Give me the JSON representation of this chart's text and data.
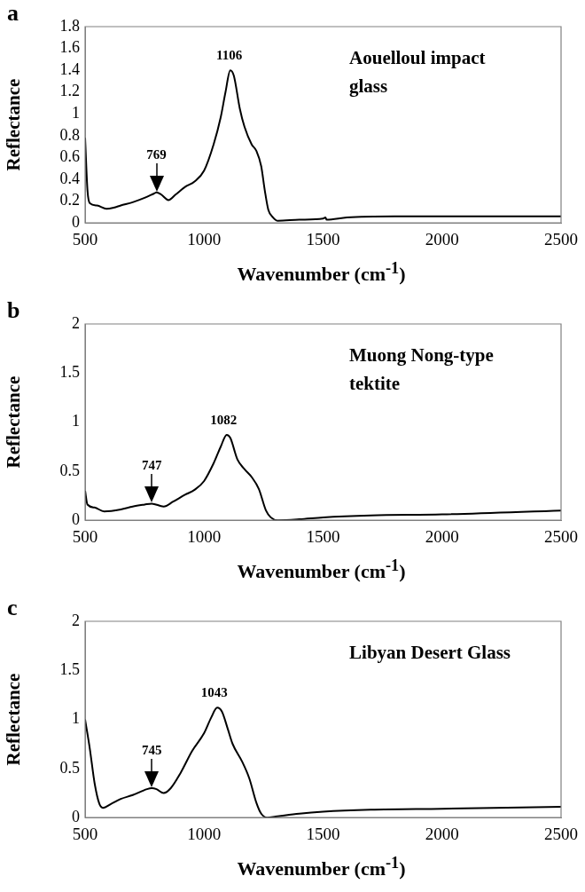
{
  "chart_data": [
    {
      "type": "line",
      "title": "a",
      "xlabel": "Wavenumber (cm$^{-1}$)",
      "ylabel": "Reflectance",
      "xlim": [
        500,
        2500
      ],
      "xticks": [
        500,
        1000,
        1500,
        2000,
        2500
      ],
      "ylim": [
        0,
        1.8
      ],
      "yticks": [
        0,
        0.2,
        0.4,
        0.6,
        0.8,
        1,
        1.2,
        1.4,
        1.6,
        1.8
      ],
      "grid": false,
      "legend": false,
      "annotations": [
        "Aouelloul impact glass",
        {
          "text": "1106",
          "x": 1106,
          "y": 1.4
        },
        {
          "text": "769",
          "x": 800,
          "y": 0.28
        }
      ],
      "series": [
        {
          "color": "#000000",
          "x": [
            500,
            510,
            520,
            550,
            590,
            620,
            650,
            700,
            750,
            790,
            800,
            820,
            850,
            880,
            920,
            960,
            1000,
            1040,
            1070,
            1090,
            1110,
            1125,
            1150,
            1170,
            1200,
            1220,
            1240,
            1255,
            1270,
            1290,
            1310,
            1400,
            1500,
            1510,
            1515,
            1600,
            1800,
            2000,
            2500
          ],
          "values": [
            0.78,
            0.3,
            0.18,
            0.16,
            0.13,
            0.14,
            0.16,
            0.19,
            0.23,
            0.27,
            0.28,
            0.26,
            0.21,
            0.26,
            0.33,
            0.38,
            0.48,
            0.72,
            0.97,
            1.2,
            1.4,
            1.35,
            1.05,
            0.88,
            0.72,
            0.66,
            0.52,
            0.3,
            0.12,
            0.05,
            0.02,
            0.03,
            0.04,
            0.05,
            0.03,
            0.05,
            0.06,
            0.06,
            0.06
          ]
        }
      ]
    },
    {
      "type": "line",
      "title": "b",
      "xlabel": "Wavenumber (cm$^{-1}$)",
      "ylabel": "Reflectance",
      "xlim": [
        500,
        2500
      ],
      "xticks": [
        500,
        1000,
        1500,
        2000,
        2500
      ],
      "ylim": [
        0,
        2
      ],
      "yticks": [
        0,
        0.5,
        1,
        1.5,
        2
      ],
      "grid": false,
      "legend": false,
      "annotations": [
        "Muong Nong-type tektite",
        {
          "text": "1082",
          "x": 1082,
          "y": 0.87
        },
        {
          "text": "747",
          "x": 780,
          "y": 0.17
        }
      ],
      "series": [
        {
          "color": "#000000",
          "x": [
            500,
            510,
            540,
            580,
            650,
            700,
            750,
            780,
            830,
            870,
            920,
            960,
            1000,
            1040,
            1070,
            1095,
            1110,
            1140,
            1170,
            1200,
            1230,
            1260,
            1280,
            1310,
            1400,
            1500,
            1700,
            2000,
            2500
          ],
          "values": [
            0.3,
            0.16,
            0.13,
            0.09,
            0.11,
            0.14,
            0.16,
            0.17,
            0.14,
            0.19,
            0.26,
            0.31,
            0.4,
            0.58,
            0.75,
            0.87,
            0.84,
            0.62,
            0.52,
            0.44,
            0.32,
            0.1,
            0.03,
            0,
            0.01,
            0.03,
            0.05,
            0.06,
            0.1
          ]
        }
      ]
    },
    {
      "type": "line",
      "title": "c",
      "xlabel": "Wavenumber (cm$^{-1}$)",
      "ylabel": "Reflectance",
      "xlim": [
        500,
        2500
      ],
      "xticks": [
        500,
        1000,
        1500,
        2000,
        2500
      ],
      "ylim": [
        0,
        2
      ],
      "yticks": [
        0,
        0.5,
        1,
        1.5,
        2
      ],
      "grid": false,
      "legend": false,
      "annotations": [
        "Libyan Desert Glass",
        {
          "text": "1043",
          "x": 1043,
          "y": 1.12
        },
        {
          "text": "745",
          "x": 780,
          "y": 0.3
        }
      ],
      "series": [
        {
          "color": "#000000",
          "x": [
            500,
            520,
            540,
            560,
            575,
            610,
            650,
            700,
            760,
            780,
            800,
            830,
            860,
            900,
            950,
            1000,
            1030,
            1055,
            1075,
            1100,
            1120,
            1160,
            1190,
            1220,
            1240,
            1265,
            1300,
            1400,
            1500,
            1700,
            2000,
            2500
          ],
          "values": [
            1,
            0.7,
            0.35,
            0.14,
            0.1,
            0.14,
            0.19,
            0.23,
            0.29,
            0.3,
            0.29,
            0.25,
            0.3,
            0.45,
            0.68,
            0.86,
            1.02,
            1.12,
            1.08,
            0.9,
            0.75,
            0.57,
            0.4,
            0.15,
            0.04,
            0,
            0.01,
            0.04,
            0.06,
            0.08,
            0.09,
            0.11
          ]
        }
      ]
    }
  ]
}
